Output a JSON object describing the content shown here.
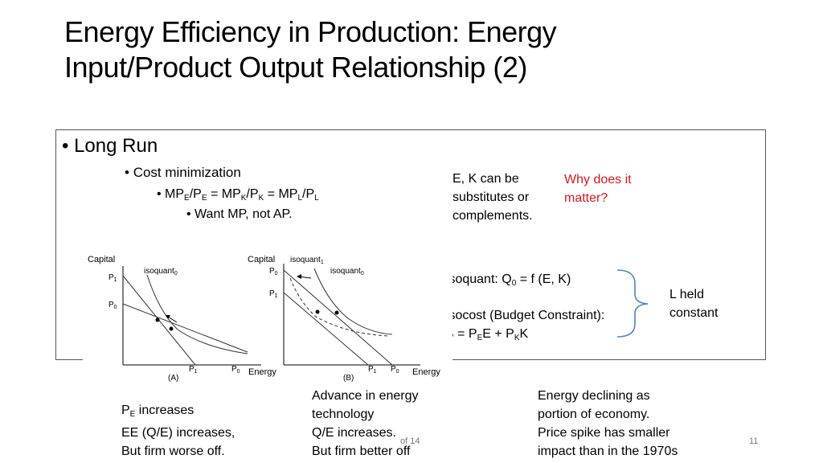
{
  "title": {
    "line1": "Energy Efficiency in Production: Energy",
    "line2": "Input/Product Output Relationship (2)"
  },
  "bullets": {
    "level1": "Long Run",
    "level2": "Cost minimization",
    "level3": {
      "mp1": "MP",
      "e1": "E",
      "slash1": "/P",
      "e2": "E",
      "eq1": " = MP",
      "k1": "K",
      "slash2": "/P",
      "k2": "K",
      "eq2": " = MP",
      "l1": "L",
      "slash3": "/P",
      "l2": "L"
    },
    "level4": "Want MP, not AP."
  },
  "notes": {
    "ek_line1": "E, K can be",
    "ek_line2": "substitutes or",
    "ek_line3": "complements.",
    "why_line1": "Why does it",
    "why_line2": "matter?",
    "isoquant": "Isoquant: Q",
    "isoquant_sub": "0",
    "isoquant_rest": " = f (E, K)",
    "isocost": "Isocost (Budget Constraint):",
    "b_pre": "B = P",
    "b_sub1": "E",
    "b_mid": "E + P",
    "b_sub2": "K",
    "b_end": "K",
    "lheld_line1": "L held",
    "lheld_line2": "constant",
    "pe_sub": "E",
    "pe_rest": " increases",
    "pe_line2": "EE (Q/E) increases,",
    "pe_line3": "But firm worse off.",
    "pe_pre": "P",
    "adv_line1": "Advance in energy",
    "adv_line2": "technology",
    "adv_line3": "Q/E increases.",
    "adv_line4": "But firm better off",
    "decl_line1": "Energy declining as",
    "decl_line2": "portion of economy.",
    "decl_line3": "Price spike has smaller",
    "decl_line4": "impact than in the 1970s"
  },
  "graph_labels": {
    "capital": "Capital",
    "energy": "Energy",
    "p0": "P",
    "p1": "P",
    "sub0": "0",
    "sub1": "1",
    "isoquant": "isoquant",
    "panel_a": "(A)",
    "panel_b": "(B)"
  },
  "footer": {
    "of": "of 14",
    "page": "11"
  },
  "colors": {
    "accent_red": "#e0141e"
  }
}
